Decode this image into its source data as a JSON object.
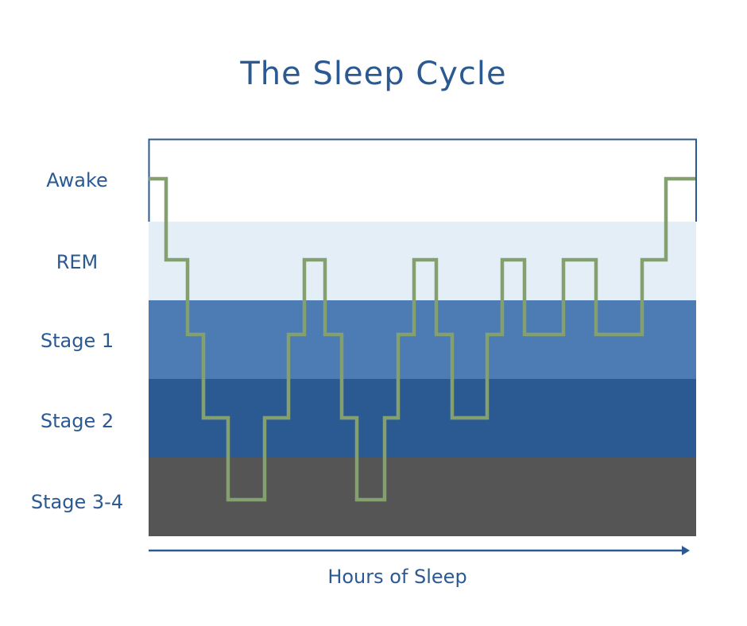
{
  "chart_data": {
    "type": "line",
    "title": "The Sleep Cycle",
    "xlabel": "Hours of Sleep",
    "ylabel": "",
    "stages": [
      "Awake",
      "REM",
      "Stage 1",
      "Stage 2",
      "Stage 3-4"
    ],
    "stage_sequence": [
      "Awake",
      "REM",
      "Stage 1",
      "Stage 2",
      "Stage 3-4",
      "Stage 2",
      "Stage 1",
      "REM",
      "Stage 1",
      "Stage 2",
      "Stage 3-4",
      "Stage 2",
      "Stage 1",
      "REM",
      "Stage 1",
      "Stage 2",
      "Stage 1",
      "REM",
      "Stage 1",
      "REM",
      "Stage 1",
      "REM",
      "Awake"
    ],
    "colors": {
      "awake": "#ffffff",
      "rem": "#e3eef7",
      "stage1": "#4d7cb4",
      "stage2": "#2b5a93",
      "stage34": "#555555",
      "line": "#84a06f",
      "text": "#2b5a93"
    }
  }
}
